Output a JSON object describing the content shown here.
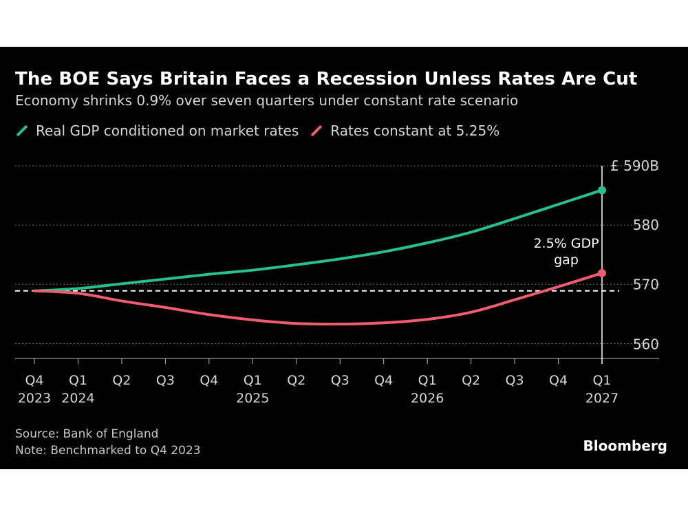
{
  "header": {
    "title": "The BOE Says Britain Faces a Recession Unless Rates Are Cut",
    "subtitle": "Economy shrinks 0.9% over seven quarters under constant rate scenario"
  },
  "colors": {
    "background": "#000000",
    "green": "#27c08a",
    "red": "#ef5b6f",
    "grid": "#6b6b6b",
    "text": "#d6d6d6"
  },
  "chart_data": {
    "type": "line",
    "x": [
      "Q4 2023",
      "Q1 2024",
      "Q2 2024",
      "Q3 2024",
      "Q4 2024",
      "Q1 2025",
      "Q2 2025",
      "Q3 2025",
      "Q4 2025",
      "Q1 2026",
      "Q2 2026",
      "Q3 2026",
      "Q4 2026",
      "Q1 2027"
    ],
    "x_tick_top": [
      "Q4",
      "Q1",
      "Q2",
      "Q3",
      "Q4",
      "Q1",
      "Q2",
      "Q3",
      "Q4",
      "Q1",
      "Q2",
      "Q3",
      "Q4",
      "Q1"
    ],
    "x_tick_bottom": [
      "2023",
      "2024",
      "",
      "",
      "",
      "2025",
      "",
      "",
      "",
      "2026",
      "",
      "",
      "",
      "2027"
    ],
    "series": [
      {
        "name": "Real GDP conditioned on market rates",
        "color": "#27c08a",
        "values": [
          568.9,
          569.3,
          570.1,
          570.9,
          571.7,
          572.4,
          573.3,
          574.3,
          575.5,
          577.0,
          578.8,
          581.1,
          583.5,
          585.9
        ]
      },
      {
        "name": "Rates constant at 5.25%",
        "color": "#ef5b6f",
        "values": [
          568.9,
          568.5,
          567.2,
          566.1,
          564.9,
          564.0,
          563.4,
          563.3,
          563.5,
          564.1,
          565.3,
          567.4,
          569.6,
          571.9
        ]
      }
    ],
    "baseline": 568.9,
    "y_ticks": [
      560,
      570,
      580,
      590
    ],
    "y_tick_labels": [
      "560",
      "570",
      "580",
      "£ 590B"
    ],
    "ylim": [
      557.5,
      590
    ],
    "grid": "dotted horizontal",
    "legend_position": "top-left",
    "annotation": {
      "lines": [
        "2.5% GDP",
        "gap"
      ],
      "x": "Q1 2027"
    }
  },
  "footer": {
    "source": "Source: Bank of England",
    "note": "Note: Benchmarked to Q4 2023",
    "brand": "Bloomberg"
  }
}
